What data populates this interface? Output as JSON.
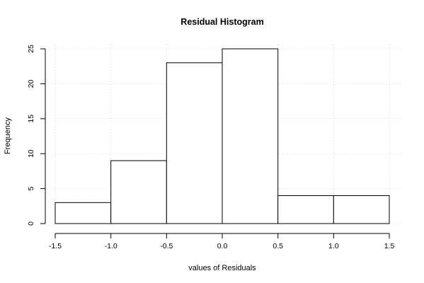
{
  "chart_data": {
    "type": "bar",
    "title": "Residual Histogram",
    "xlabel": "values of Residuals",
    "ylabel": "Frequency",
    "bins": [
      {
        "from": -1.5,
        "to": -1.0,
        "count": 3
      },
      {
        "from": -1.0,
        "to": -0.5,
        "count": 9
      },
      {
        "from": -0.5,
        "to": 0.0,
        "count": 23
      },
      {
        "from": 0.0,
        "to": 0.5,
        "count": 25
      },
      {
        "from": 0.5,
        "to": 1.0,
        "count": 4
      },
      {
        "from": 1.0,
        "to": 1.5,
        "count": 4
      }
    ],
    "xticks": [
      -1.5,
      -1.0,
      -0.5,
      0.0,
      0.5,
      1.0,
      1.5
    ],
    "xtick_labels": [
      "-1.5",
      "-1.0",
      "-0.5",
      "0.0",
      "0.5",
      "1.0",
      "1.5"
    ],
    "yticks": [
      0,
      5,
      10,
      15,
      20,
      25
    ],
    "ytick_labels": [
      "0",
      "5",
      "10",
      "15",
      "20",
      "25"
    ],
    "xlim": [
      -1.5,
      1.5
    ],
    "ylim": [
      0,
      25
    ],
    "grid": true,
    "bar_fill": "#ffffff",
    "bar_stroke": "#000000",
    "grid_color": "#d9d9d9"
  }
}
